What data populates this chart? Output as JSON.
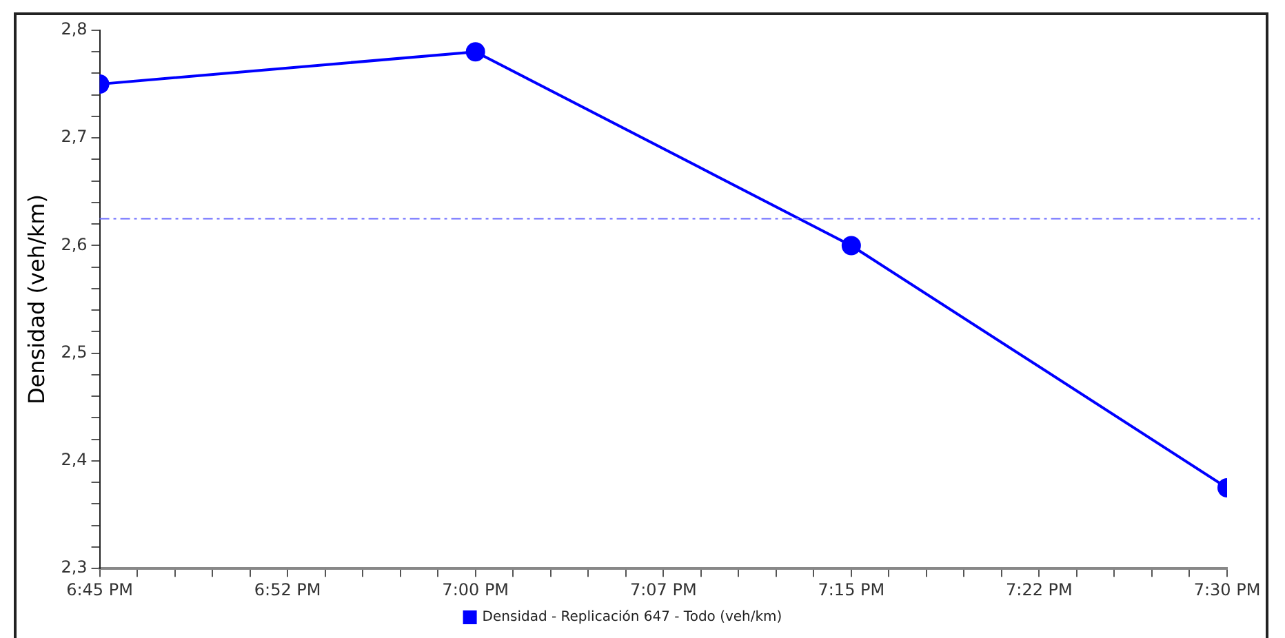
{
  "chart_data": {
    "type": "line",
    "ylabel": "Densidad (veh/km)",
    "x": [
      18.75,
      19,
      19.25,
      19.5
    ],
    "series": [
      {
        "name": "Densidad - Replicación 647 - Todo (veh/km)",
        "color": "#0000ff",
        "values": [
          2.75,
          2.78,
          2.6,
          2.375
        ]
      }
    ],
    "xlim": [
      18.75,
      19.5
    ],
    "xticks": [
      {
        "value": 18.75,
        "label": "6:45 PM"
      },
      {
        "value": 18.775,
        "label": null
      },
      {
        "value": 18.8,
        "label": null
      },
      {
        "value": 18.825,
        "label": null
      },
      {
        "value": 18.85,
        "label": null
      },
      {
        "value": 18.875,
        "label": "6:52 PM"
      },
      {
        "value": 18.9,
        "label": null
      },
      {
        "value": 18.925,
        "label": null
      },
      {
        "value": 18.95,
        "label": null
      },
      {
        "value": 18.975,
        "label": null
      },
      {
        "value": 19,
        "label": "7:00 PM"
      },
      {
        "value": 19.025,
        "label": null
      },
      {
        "value": 19.05,
        "label": null
      },
      {
        "value": 19.075,
        "label": null
      },
      {
        "value": 19.1,
        "label": null
      },
      {
        "value": 19.125,
        "label": "7:07 PM"
      },
      {
        "value": 19.15,
        "label": null
      },
      {
        "value": 19.175,
        "label": null
      },
      {
        "value": 19.2,
        "label": null
      },
      {
        "value": 19.225,
        "label": null
      },
      {
        "value": 19.25,
        "label": "7:15 PM"
      },
      {
        "value": 19.275,
        "label": null
      },
      {
        "value": 19.3,
        "label": null
      },
      {
        "value": 19.325,
        "label": null
      },
      {
        "value": 19.35,
        "label": null
      },
      {
        "value": 19.375,
        "label": "7:22 PM"
      },
      {
        "value": 19.4,
        "label": null
      },
      {
        "value": 19.425,
        "label": null
      },
      {
        "value": 19.45,
        "label": null
      },
      {
        "value": 19.475,
        "label": null
      },
      {
        "value": 19.5,
        "label": "7:30 PM"
      }
    ],
    "ylim": [
      2.3,
      2.8
    ],
    "yticks": [
      {
        "value": 2.3,
        "label": "2,3"
      },
      {
        "value": 2.32,
        "label": null
      },
      {
        "value": 2.34,
        "label": null
      },
      {
        "value": 2.36,
        "label": null
      },
      {
        "value": 2.38,
        "label": null
      },
      {
        "value": 2.4,
        "label": "2,4"
      },
      {
        "value": 2.42,
        "label": null
      },
      {
        "value": 2.44,
        "label": null
      },
      {
        "value": 2.46,
        "label": null
      },
      {
        "value": 2.48,
        "label": null
      },
      {
        "value": 2.5,
        "label": "2,5"
      },
      {
        "value": 2.52,
        "label": null
      },
      {
        "value": 2.54,
        "label": null
      },
      {
        "value": 2.56,
        "label": null
      },
      {
        "value": 2.58,
        "label": null
      },
      {
        "value": 2.6,
        "label": "2,6"
      },
      {
        "value": 2.62,
        "label": null
      },
      {
        "value": 2.64,
        "label": null
      },
      {
        "value": 2.66,
        "label": null
      },
      {
        "value": 2.68,
        "label": null
      },
      {
        "value": 2.7,
        "label": "2,7"
      },
      {
        "value": 2.72,
        "label": null
      },
      {
        "value": 2.74,
        "label": null
      },
      {
        "value": 2.76,
        "label": null
      },
      {
        "value": 2.78,
        "label": null
      },
      {
        "value": 2.8,
        "label": "2,8"
      }
    ],
    "ref_lines": [
      {
        "axis": "y",
        "value": 2.625,
        "color": "#6a6aff",
        "line_style": "dashed"
      }
    ],
    "grid": false,
    "legend": "bottom",
    "marker": "circle",
    "line_style": "solid"
  }
}
